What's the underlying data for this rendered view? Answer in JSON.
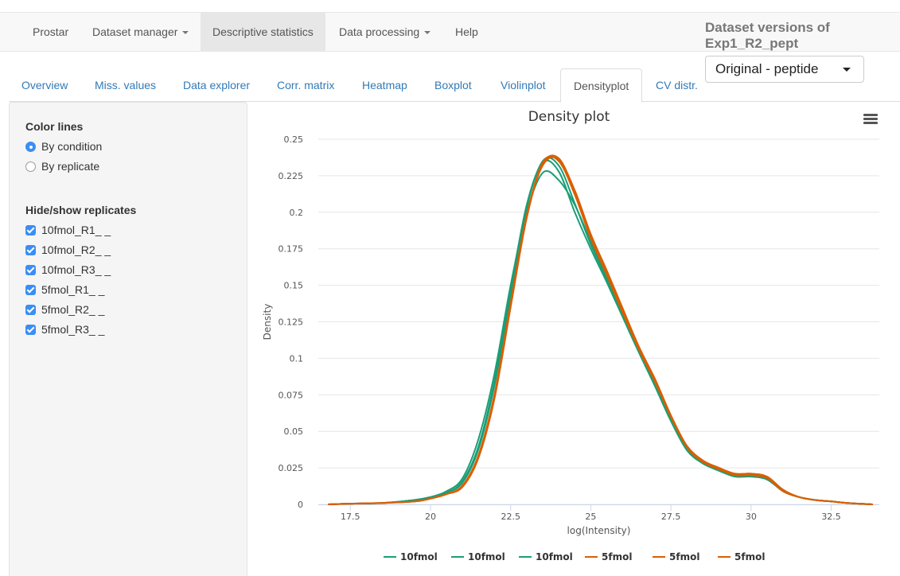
{
  "navbar": {
    "items": [
      {
        "label": "Prostar"
      },
      {
        "label": "Dataset manager"
      },
      {
        "label": "Descriptive statistics"
      },
      {
        "label": "Data processing"
      },
      {
        "label": "Help"
      }
    ]
  },
  "dataset_versions": {
    "title_line1": "Dataset versions of",
    "title_line2": "Exp1_R2_pept",
    "selected": "Original - peptide"
  },
  "tabs": [
    {
      "label": "Overview"
    },
    {
      "label": "Miss. values"
    },
    {
      "label": "Data explorer"
    },
    {
      "label": "Corr. matrix"
    },
    {
      "label": "Heatmap"
    },
    {
      "label": "Boxplot"
    },
    {
      "label": "Violinplot"
    },
    {
      "label": "Densityplot"
    },
    {
      "label": "CV distr."
    }
  ],
  "sidebar": {
    "color_lines_label": "Color lines",
    "color_options": [
      {
        "label": "By condition",
        "selected": true
      },
      {
        "label": "By replicate",
        "selected": false
      }
    ],
    "replicates_label": "Hide/show replicates",
    "replicates": [
      {
        "label": "10fmol_R1_ _",
        "checked": true
      },
      {
        "label": "10fmol_R2_ _",
        "checked": true
      },
      {
        "label": "10fmol_R3_ _",
        "checked": true
      },
      {
        "label": "5fmol_R1_ _",
        "checked": true
      },
      {
        "label": "5fmol_R2_ _",
        "checked": true
      },
      {
        "label": "5fmol_R3_ _",
        "checked": true
      }
    ]
  },
  "chart_data": {
    "type": "line",
    "title": "Density plot",
    "xlabel": "log(Intensity)",
    "ylabel": "Density",
    "xlim": [
      16.5,
      34
    ],
    "ylim": [
      0,
      0.25
    ],
    "x_ticks": [
      "17.5",
      "20",
      "22.5",
      "25",
      "27.5",
      "30",
      "32.5"
    ],
    "y_ticks": [
      "0",
      "0.025",
      "0.05",
      "0.075",
      "0.1",
      "0.125",
      "0.15",
      "0.175",
      "0.2",
      "0.225",
      "0.25"
    ],
    "grid": true,
    "legend_position": "bottom",
    "colors": {
      "10fmol": "#1b9e77",
      "5fmol": "#d95f02"
    },
    "series": [
      {
        "name": "10fmol",
        "color": "#1b9e77",
        "x": [
          16.8,
          17.5,
          18.5,
          19.5,
          20,
          20.5,
          21,
          21.5,
          22,
          22.5,
          23,
          23.5,
          24,
          24.5,
          25,
          25.5,
          26,
          26.5,
          27,
          27.5,
          28,
          28.5,
          29,
          29.5,
          30,
          30.5,
          31,
          31.5,
          32,
          32.5,
          33,
          33.8
        ],
        "y": [
          0,
          0.0005,
          0.001,
          0.003,
          0.005,
          0.009,
          0.018,
          0.045,
          0.09,
          0.15,
          0.2,
          0.227,
          0.222,
          0.205,
          0.18,
          0.155,
          0.13,
          0.105,
          0.082,
          0.058,
          0.038,
          0.028,
          0.024,
          0.02,
          0.02,
          0.018,
          0.009,
          0.005,
          0.003,
          0.002,
          0.001,
          0
        ]
      },
      {
        "name": "10fmol",
        "color": "#1b9e77",
        "x": [
          16.8,
          17.5,
          18.5,
          19.5,
          20,
          20.5,
          21,
          21.5,
          22,
          22.5,
          23,
          23.5,
          24,
          24.5,
          25,
          25.5,
          26,
          26.5,
          27,
          27.5,
          28,
          28.5,
          29,
          29.5,
          30,
          30.5,
          31,
          31.5,
          32,
          32.5,
          33,
          33.8
        ],
        "y": [
          0,
          0.0005,
          0.001,
          0.003,
          0.005,
          0.008,
          0.016,
          0.04,
          0.085,
          0.147,
          0.205,
          0.234,
          0.228,
          0.2,
          0.175,
          0.152,
          0.128,
          0.104,
          0.081,
          0.057,
          0.037,
          0.028,
          0.023,
          0.019,
          0.019,
          0.017,
          0.009,
          0.005,
          0.003,
          0.002,
          0.001,
          0
        ]
      },
      {
        "name": "10fmol",
        "color": "#1b9e77",
        "x": [
          16.8,
          17.5,
          18.5,
          19.5,
          20,
          20.5,
          21,
          21.5,
          22,
          22.5,
          23,
          23.5,
          24,
          24.5,
          25,
          25.5,
          26,
          26.5,
          27,
          27.5,
          28,
          28.5,
          29,
          29.5,
          30,
          30.5,
          31,
          31.5,
          32,
          32.5,
          33,
          33.8
        ],
        "y": [
          0,
          0.0005,
          0.001,
          0.003,
          0.005,
          0.008,
          0.015,
          0.038,
          0.082,
          0.143,
          0.203,
          0.235,
          0.232,
          0.206,
          0.178,
          0.154,
          0.13,
          0.105,
          0.082,
          0.058,
          0.038,
          0.029,
          0.024,
          0.02,
          0.02,
          0.018,
          0.009,
          0.005,
          0.003,
          0.002,
          0.001,
          0
        ]
      },
      {
        "name": "5fmol",
        "color": "#d95f02",
        "x": [
          16.8,
          17.5,
          18.5,
          19.5,
          20,
          20.5,
          21,
          21.5,
          22,
          22.5,
          23,
          23.5,
          24,
          24.5,
          25,
          25.5,
          26,
          26.5,
          27,
          27.5,
          28,
          28.5,
          29,
          29.5,
          30,
          30.5,
          31,
          31.5,
          32,
          32.5,
          33,
          33.8
        ],
        "y": [
          0,
          0.0005,
          0.001,
          0.002,
          0.004,
          0.007,
          0.013,
          0.034,
          0.076,
          0.138,
          0.198,
          0.232,
          0.236,
          0.215,
          0.185,
          0.16,
          0.134,
          0.108,
          0.086,
          0.061,
          0.04,
          0.03,
          0.025,
          0.021,
          0.021,
          0.019,
          0.01,
          0.005,
          0.003,
          0.002,
          0.001,
          0
        ]
      },
      {
        "name": "5fmol",
        "color": "#d95f02",
        "x": [
          16.8,
          17.5,
          18.5,
          19.5,
          20,
          20.5,
          21,
          21.5,
          22,
          22.5,
          23,
          23.5,
          24,
          24.5,
          25,
          25.5,
          26,
          26.5,
          27,
          27.5,
          28,
          28.5,
          29,
          29.5,
          30,
          30.5,
          31,
          31.5,
          32,
          32.5,
          33,
          33.8
        ],
        "y": [
          0,
          0.0005,
          0.001,
          0.002,
          0.004,
          0.007,
          0.012,
          0.032,
          0.073,
          0.135,
          0.196,
          0.233,
          0.237,
          0.214,
          0.184,
          0.158,
          0.132,
          0.107,
          0.085,
          0.06,
          0.04,
          0.03,
          0.025,
          0.021,
          0.021,
          0.019,
          0.01,
          0.005,
          0.003,
          0.002,
          0.001,
          0
        ]
      },
      {
        "name": "5fmol",
        "color": "#d95f02",
        "x": [
          16.8,
          17.5,
          18.5,
          19.5,
          20,
          20.5,
          21,
          21.5,
          22,
          22.5,
          23,
          23.5,
          24,
          24.5,
          25,
          25.5,
          26,
          26.5,
          27,
          27.5,
          28,
          28.5,
          29,
          29.5,
          30,
          30.5,
          31,
          31.5,
          32,
          32.5,
          33,
          33.8
        ],
        "y": [
          0,
          0.0005,
          0.001,
          0.002,
          0.004,
          0.007,
          0.013,
          0.033,
          0.074,
          0.136,
          0.197,
          0.234,
          0.235,
          0.212,
          0.182,
          0.157,
          0.131,
          0.106,
          0.084,
          0.06,
          0.039,
          0.029,
          0.024,
          0.02,
          0.02,
          0.018,
          0.009,
          0.005,
          0.003,
          0.002,
          0.001,
          0
        ]
      }
    ]
  }
}
